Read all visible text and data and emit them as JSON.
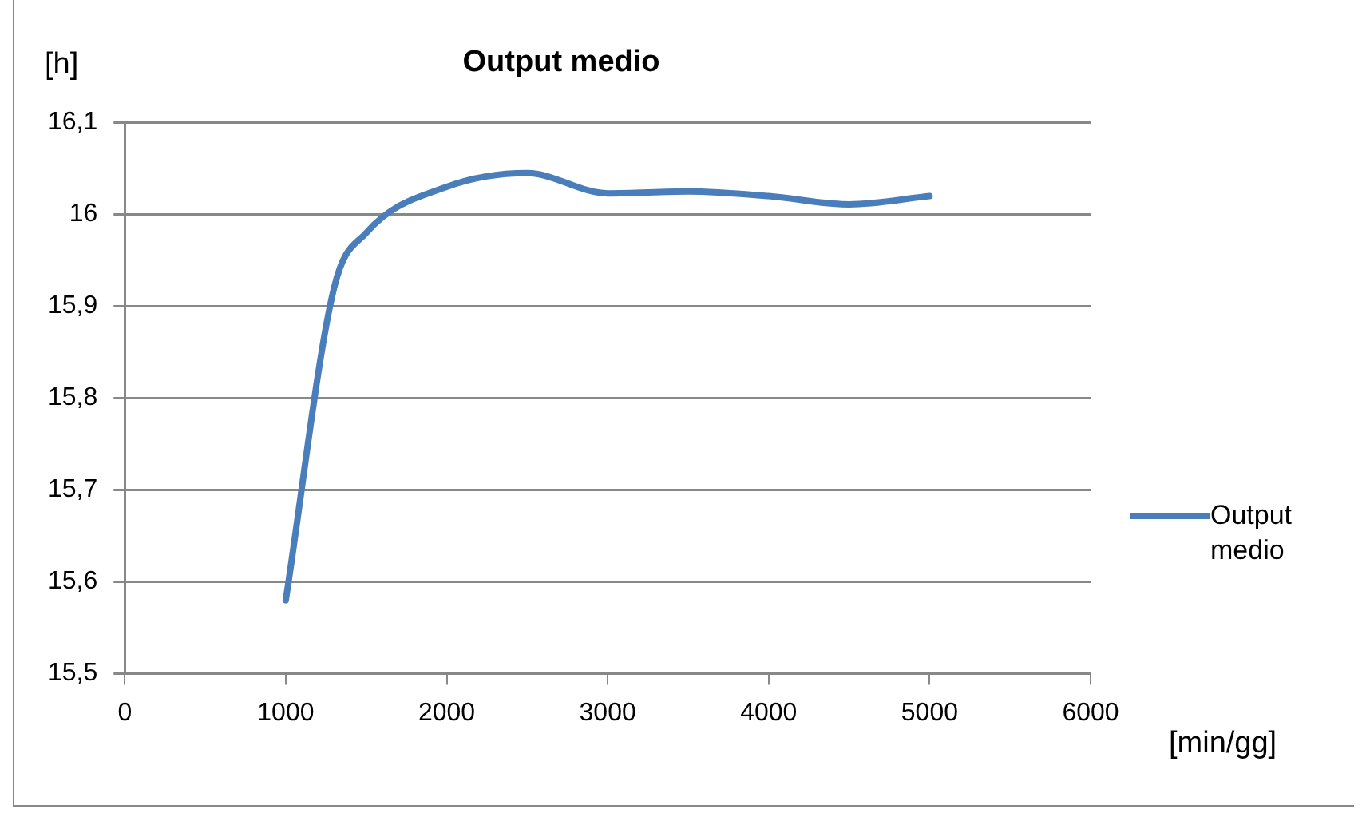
{
  "chart_data": {
    "type": "line",
    "title": "Output medio",
    "xlabel": "[min/gg]",
    "ylabel": "[h]",
    "x": [
      1000,
      1300,
      1500,
      2000,
      2500,
      3000,
      3500,
      4000,
      4500,
      5000
    ],
    "series": [
      {
        "name": "Output medio",
        "color": "#4a7ebb",
        "values": [
          15.58,
          15.92,
          15.98,
          16.03,
          16.045,
          16.023,
          16.025,
          16.02,
          16.011,
          16.02
        ]
      }
    ],
    "xlim": [
      0,
      6000
    ],
    "xticks": [
      0,
      1000,
      2000,
      3000,
      4000,
      5000,
      6000
    ],
    "ylim": [
      15.5,
      16.1
    ],
    "yticks": [
      {
        "value": 15.5,
        "label": "15,5"
      },
      {
        "value": 15.6,
        "label": "15,6"
      },
      {
        "value": 15.7,
        "label": "15,7"
      },
      {
        "value": 15.8,
        "label": "15,8"
      },
      {
        "value": 15.9,
        "label": "15,9"
      },
      {
        "value": 16,
        "label": "16"
      },
      {
        "value": 16.1,
        "label": "16,1"
      }
    ],
    "grid": "y",
    "legend": "right",
    "marker": "none",
    "line_style": "solid"
  }
}
